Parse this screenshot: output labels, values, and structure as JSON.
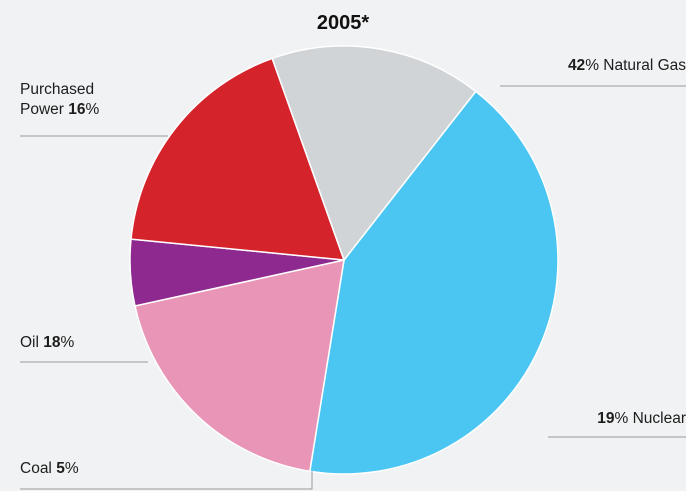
{
  "chart_data": {
    "type": "pie",
    "title": "2005*",
    "unit": "%",
    "slices": [
      {
        "name": "Natural Gas",
        "value": 42,
        "color": "#4bc6f3"
      },
      {
        "name": "Nuclear",
        "value": 19,
        "color": "#e895b7"
      },
      {
        "name": "Coal",
        "value": 5,
        "color": "#8e2a8f"
      },
      {
        "name": "Oil",
        "value": 18,
        "color": "#d4232b"
      },
      {
        "name": "Purchased Power",
        "value": 16,
        "color": "#d0d4d7"
      }
    ]
  },
  "labels": {
    "natural_gas": {
      "value": "42",
      "unit": "%",
      "name": " Natural Gas"
    },
    "nuclear": {
      "value": "19",
      "unit": "%",
      "name": " Nuclear"
    },
    "coal": {
      "name": "Coal ",
      "value": "5",
      "unit": "%"
    },
    "oil": {
      "name": "Oil ",
      "value": "18",
      "unit": "%"
    },
    "purchased_power": {
      "line1": "Purchased",
      "name": "Power ",
      "value": "16",
      "unit": "%"
    }
  }
}
